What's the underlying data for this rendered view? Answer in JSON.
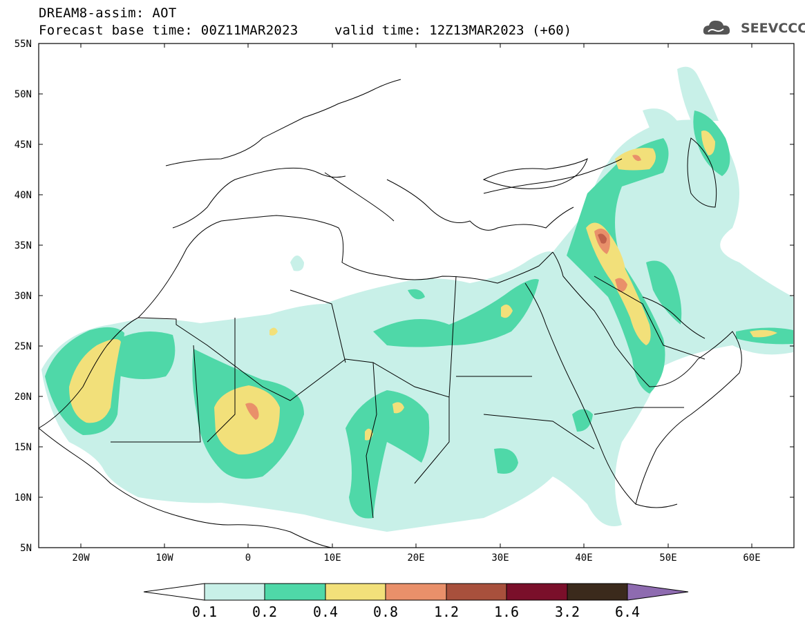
{
  "header": {
    "title": "DREAM8-assim: AOT",
    "base_time": "Forecast base time: 00Z11MAR2023",
    "valid_time": "valid time: 12Z13MAR2023 (+60)",
    "logo": "SEEVCCC"
  },
  "map": {
    "variable": "AOT",
    "lon_range": [
      -25,
      65
    ],
    "lat_range": [
      5,
      55
    ],
    "lat_ticks": [
      "55N",
      "50N",
      "45N",
      "40N",
      "35N",
      "30N",
      "25N",
      "20N",
      "15N",
      "10N",
      "5N"
    ],
    "lon_ticks": [
      "20W",
      "10W",
      "0",
      "10E",
      "20E",
      "30E",
      "40E",
      "50E",
      "60E"
    ]
  },
  "colorbar": {
    "labels": [
      "0.1",
      "0.2",
      "0.4",
      "0.8",
      "1.2",
      "1.6",
      "3.2",
      "6.4"
    ],
    "colors": [
      "#c8f0e8",
      "#4fd8a8",
      "#f2e07a",
      "#e9906a",
      "#a8503c",
      "#7a0f2a",
      "#3b2a1c"
    ],
    "under_color": "#ffffff",
    "over_color": "#8e6bb0"
  },
  "colors": {
    "c1": "#c8f0e8",
    "c2": "#4fd8a8",
    "c3": "#f2e07a",
    "c4": "#e9906a",
    "c5": "#c0604a",
    "boundary": "#000000"
  }
}
